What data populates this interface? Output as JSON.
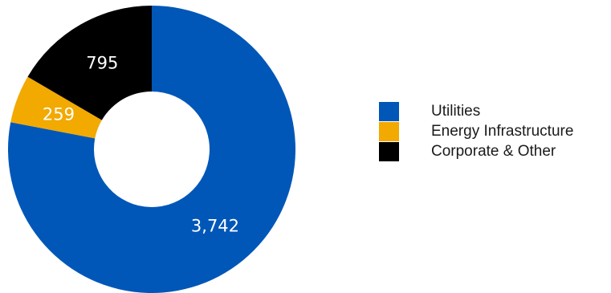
{
  "chart_data": {
    "type": "pie",
    "donut": true,
    "labels": [
      "Utilities",
      "Energy Infrastructure",
      "Corporate & Other"
    ],
    "values": [
      3742,
      259,
      795
    ],
    "value_labels": [
      "3,742",
      "259",
      "795"
    ],
    "colors": [
      "#0057b8",
      "#f2a900",
      "#000000"
    ],
    "legend_position": "right",
    "start_angle_deg": 0,
    "direction": "clockwise"
  }
}
